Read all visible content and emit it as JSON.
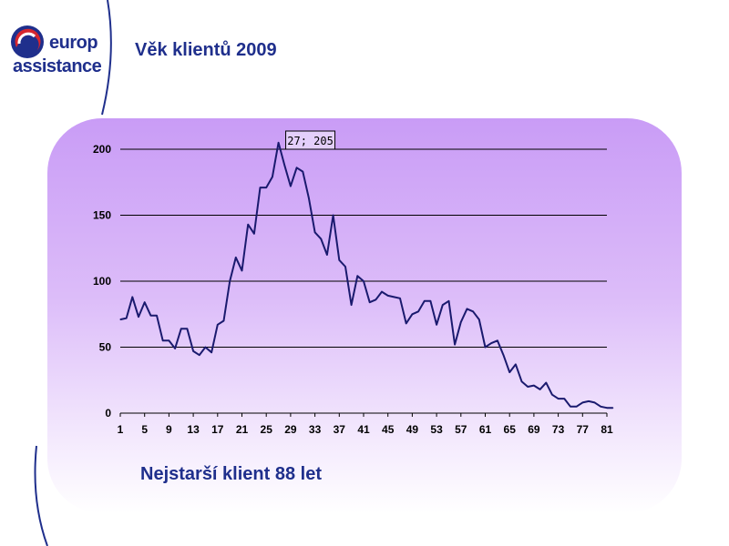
{
  "logo": {
    "word1": "europ",
    "word2": "assistance"
  },
  "title": "Věk klientů 2009",
  "footnote": "Nejstarší klient 88 let",
  "colors": {
    "brand_blue": "#1f2f8c",
    "logo_red": "#d6262e",
    "line": "#1a1a6e"
  },
  "chart_data": {
    "type": "line",
    "title": "",
    "xlabel": "",
    "ylabel": "",
    "ylim": [
      0,
      200
    ],
    "yticks": [
      0,
      50,
      100,
      150,
      200
    ],
    "xticks": [
      1,
      5,
      9,
      13,
      17,
      21,
      25,
      29,
      33,
      37,
      41,
      45,
      49,
      53,
      57,
      61,
      65,
      69,
      73,
      77,
      81
    ],
    "grid": "horizontal",
    "x": [
      1,
      2,
      3,
      4,
      5,
      6,
      7,
      8,
      9,
      10,
      11,
      12,
      13,
      14,
      15,
      16,
      17,
      18,
      19,
      20,
      21,
      22,
      23,
      24,
      25,
      26,
      27,
      28,
      29,
      30,
      31,
      32,
      33,
      34,
      35,
      36,
      37,
      38,
      39,
      40,
      41,
      42,
      43,
      44,
      45,
      46,
      47,
      48,
      49,
      50,
      51,
      52,
      53,
      54,
      55,
      56,
      57,
      58,
      59,
      60,
      61,
      62,
      63,
      64,
      65,
      66,
      67,
      68,
      69,
      70,
      71,
      72,
      73,
      74,
      75,
      76,
      77,
      78,
      79,
      80,
      81,
      82
    ],
    "values": [
      71,
      72,
      88,
      73,
      84,
      74,
      74,
      55,
      55,
      49,
      64,
      64,
      47,
      44,
      50,
      46,
      67,
      70,
      100,
      118,
      108,
      143,
      136,
      171,
      171,
      179,
      205,
      188,
      172,
      186,
      183,
      163,
      137,
      132,
      120,
      150,
      116,
      111,
      82,
      104,
      100,
      84,
      86,
      92,
      89,
      88,
      87,
      68,
      75,
      77,
      85,
      85,
      67,
      82,
      85,
      52,
      69,
      79,
      77,
      71,
      50,
      53,
      55,
      44,
      31,
      37,
      24,
      20,
      21,
      18,
      23,
      14,
      11,
      11,
      5,
      5,
      8,
      9,
      8,
      5,
      4,
      4
    ],
    "annotation": {
      "x": 27,
      "y": 205,
      "text": "27; 205"
    }
  }
}
